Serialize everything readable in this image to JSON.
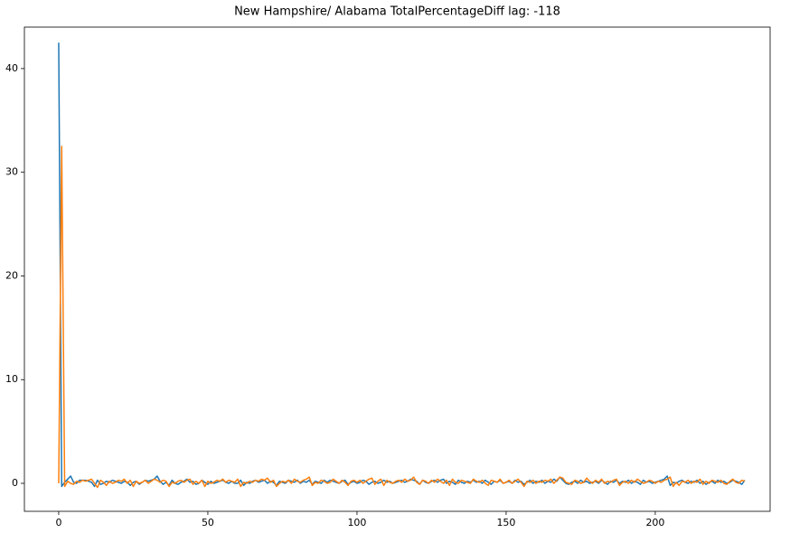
{
  "chart_data": {
    "type": "line",
    "title": "New Hampshire/ Alabama TotalPercentageDiff lag: -118",
    "x": [
      0,
      1,
      2,
      3,
      4,
      5,
      6,
      7,
      8,
      9,
      10,
      11,
      12,
      13,
      14,
      15,
      16,
      17,
      18,
      19,
      20,
      21,
      22,
      23,
      24,
      25,
      26,
      27,
      28,
      29,
      30,
      31,
      32,
      33,
      34,
      35,
      36,
      37,
      38,
      39,
      40,
      41,
      42,
      43,
      44,
      45,
      46,
      47,
      48,
      49,
      50,
      51,
      52,
      53,
      54,
      55,
      56,
      57,
      58,
      59,
      60,
      61,
      62,
      63,
      64,
      65,
      66,
      67,
      68,
      69,
      70,
      71,
      72,
      73,
      74,
      75,
      76,
      77,
      78,
      79,
      80,
      81,
      82,
      83,
      84,
      85,
      86,
      87,
      88,
      89,
      90,
      91,
      92,
      93,
      94,
      95,
      96,
      97,
      98,
      99,
      100,
      101,
      102,
      103,
      104,
      105,
      106,
      107,
      108,
      109,
      110,
      111,
      112,
      113,
      114,
      115,
      116,
      117,
      118,
      119,
      120,
      121,
      122,
      123,
      124,
      125,
      126,
      127,
      128,
      129,
      130,
      131,
      132,
      133,
      134,
      135,
      136,
      137,
      138,
      139,
      140,
      141,
      142,
      143,
      144,
      145,
      146,
      147,
      148,
      149,
      150,
      151,
      152,
      153,
      154,
      155,
      156,
      157,
      158,
      159,
      160,
      161,
      162,
      163,
      164,
      165,
      166,
      167,
      168,
      169,
      170,
      171,
      172,
      173,
      174,
      175,
      176,
      177,
      178,
      179,
      180,
      181,
      182,
      183,
      184,
      185,
      186,
      187,
      188,
      189,
      190,
      191,
      192,
      193,
      194,
      195,
      196,
      197,
      198,
      199,
      200,
      201,
      202,
      203,
      204,
      205,
      206,
      207,
      208,
      209,
      210,
      211,
      212,
      213,
      214,
      215,
      216,
      217,
      218,
      219,
      220,
      221,
      222,
      223,
      224,
      225,
      226,
      227,
      228,
      229,
      230
    ],
    "series": [
      {
        "color": "#1f77b4",
        "values": [
          42.5,
          -0.3,
          0.1,
          0.4,
          0.7,
          0.1,
          0.0,
          0.3,
          0.3,
          0.3,
          0.2,
          0.1,
          -0.3,
          0.3,
          -0.1,
          0.0,
          0.2,
          0.1,
          0.3,
          0.2,
          0.1,
          0.0,
          0.2,
          0.1,
          -0.2,
          0.1,
          0.2,
          -0.1,
          0.1,
          0.3,
          0.2,
          0.3,
          0.4,
          0.7,
          0.2,
          -0.1,
          0.1,
          -0.2,
          0.3,
          0.0,
          -0.1,
          0.1,
          0.2,
          0.4,
          0.1,
          0.2,
          -0.1,
          0.0,
          0.3,
          0.1,
          -0.1,
          0.2,
          0.0,
          0.1,
          0.2,
          0.3,
          0.1,
          0.0,
          0.2,
          0.0,
          0.0,
          0.3,
          -0.2,
          0.1,
          0.0,
          0.2,
          0.3,
          0.1,
          0.2,
          0.3,
          0.0,
          0.2,
          0.1,
          -0.2,
          0.2,
          0.1,
          0.0,
          0.3,
          0.2,
          0.1,
          0.3,
          0.0,
          0.2,
          0.1,
          0.3,
          -0.1,
          0.2,
          0.1,
          0.0,
          0.3,
          0.1,
          0.3,
          0.2,
          0.1,
          0.0,
          0.2,
          0.3,
          -0.1,
          0.1,
          0.2,
          0.0,
          0.1,
          0.3,
          0.2,
          -0.1,
          0.1,
          0.2,
          0.0,
          0.1,
          0.3,
          0.1,
          0.2,
          0.0,
          0.1,
          0.2,
          0.3,
          0.1,
          0.2,
          0.4,
          0.3,
          0.2,
          -0.1,
          0.3,
          0.1,
          0.0,
          0.2,
          0.3,
          0.1,
          0.3,
          0.4,
          0.0,
          0.2,
          0.1,
          -0.1,
          0.3,
          0.1,
          0.0,
          0.2,
          0.1,
          0.3,
          0.1,
          0.2,
          0.0,
          0.3,
          0.1,
          -0.1,
          0.2,
          0.1,
          0.3,
          0.0,
          0.1,
          0.2,
          0.0,
          0.3,
          0.1,
          0.2,
          -0.1,
          0.1,
          0.3,
          0.0,
          0.2,
          0.1,
          0.3,
          0.0,
          0.2,
          0.1,
          0.4,
          0.2,
          0.6,
          0.3,
          0.0,
          -0.1,
          0.1,
          0.2,
          0.0,
          0.3,
          0.1,
          0.2,
          0.0,
          0.1,
          0.2,
          0.0,
          0.3,
          0.1,
          -0.1,
          0.2,
          0.1,
          0.3,
          0.0,
          0.2,
          0.1,
          0.3,
          0.0,
          0.2,
          0.1,
          -0.1,
          0.3,
          0.1,
          0.2,
          0.0,
          0.1,
          0.2,
          0.3,
          0.4,
          0.7,
          -0.2,
          0.1,
          0.0,
          0.2,
          0.3,
          0.1,
          0.0,
          0.2,
          0.1,
          0.3,
          0.0,
          0.2,
          -0.1,
          0.1,
          0.2,
          0.0,
          0.3,
          0.1,
          0.2,
          0.0,
          0.1,
          0.3,
          0.2,
          0.1,
          -0.1,
          0.3
        ]
      },
      {
        "color": "#ff7f0e",
        "values": [
          0.0,
          32.5,
          -0.3,
          0.2,
          0.0,
          -0.1,
          0.2,
          0.1,
          0.3,
          0.2,
          0.3,
          0.4,
          0.0,
          -0.4,
          0.3,
          0.1,
          -0.2,
          0.2,
          0.0,
          0.1,
          0.3,
          0.2,
          0.4,
          0.0,
          0.3,
          -0.3,
          0.2,
          0.0,
          0.1,
          0.3,
          0.0,
          0.2,
          0.4,
          0.3,
          0.1,
          0.3,
          0.2,
          -0.3,
          0.1,
          0.0,
          0.2,
          0.3,
          0.1,
          0.3,
          0.4,
          -0.1,
          0.2,
          0.0,
          0.3,
          -0.3,
          0.2,
          0.0,
          0.1,
          0.3,
          0.2,
          0.4,
          0.1,
          0.3,
          0.2,
          0.1,
          0.4,
          -0.3,
          0.1,
          0.0,
          0.2,
          0.1,
          0.3,
          0.2,
          0.4,
          0.3,
          0.5,
          0.1,
          0.3,
          -0.3,
          0.0,
          0.2,
          0.1,
          0.3,
          0.0,
          0.4,
          0.2,
          0.1,
          0.3,
          0.4,
          0.6,
          -0.2,
          0.1,
          0.0,
          0.3,
          0.2,
          0.0,
          0.1,
          0.4,
          0.2,
          0.0,
          0.3,
          0.1,
          -0.2,
          0.2,
          0.3,
          0.1,
          0.3,
          0.0,
          0.2,
          0.4,
          0.5,
          -0.1,
          0.2,
          0.4,
          -0.2,
          0.3,
          0.1,
          0.0,
          0.2,
          0.3,
          0.1,
          0.4,
          0.2,
          0.3,
          0.6,
          0.1,
          -0.1,
          0.3,
          0.2,
          0.0,
          0.3,
          0.1,
          0.4,
          0.2,
          0.0,
          0.3,
          -0.2,
          0.4,
          0.1,
          0.0,
          0.3,
          0.2,
          0.1,
          0.0,
          0.4,
          0.2,
          0.1,
          0.3,
          0.0,
          -0.2,
          0.3,
          0.2,
          0.1,
          0.4,
          0.0,
          0.1,
          0.3,
          0.0,
          0.2,
          0.4,
          0.1,
          -0.3,
          0.2,
          0.1,
          0.3,
          0.0,
          0.2,
          0.1,
          0.3,
          0.2,
          0.4,
          0.0,
          0.3,
          0.6,
          0.5,
          0.1,
          0.0,
          -0.1,
          0.3,
          0.2,
          0.0,
          0.1,
          0.5,
          0.2,
          0.0,
          0.3,
          0.1,
          0.4,
          0.0,
          0.2,
          0.1,
          0.3,
          0.4,
          -0.2,
          0.1,
          0.2,
          0.0,
          0.3,
          0.1,
          0.4,
          0.2,
          0.0,
          0.1,
          0.3,
          0.2,
          0.0,
          0.2,
          0.1,
          0.3,
          0.4,
          0.6,
          -0.3,
          0.1,
          -0.2,
          0.2,
          0.1,
          0.3,
          0.0,
          0.2,
          0.1,
          0.4,
          -0.1,
          0.2,
          0.0,
          0.3,
          0.2,
          0.1,
          0.3,
          0.0,
          -0.1,
          0.2,
          0.4,
          0.1,
          0.0,
          0.3,
          0.2
        ]
      }
    ],
    "xlim": [
      -11.5,
      238.5
    ],
    "xticks": [
      0,
      50,
      100,
      150,
      200
    ],
    "ylim": [
      -2.7,
      44.0
    ],
    "yticks": [
      0,
      10,
      20,
      30,
      40
    ],
    "grid": false
  }
}
